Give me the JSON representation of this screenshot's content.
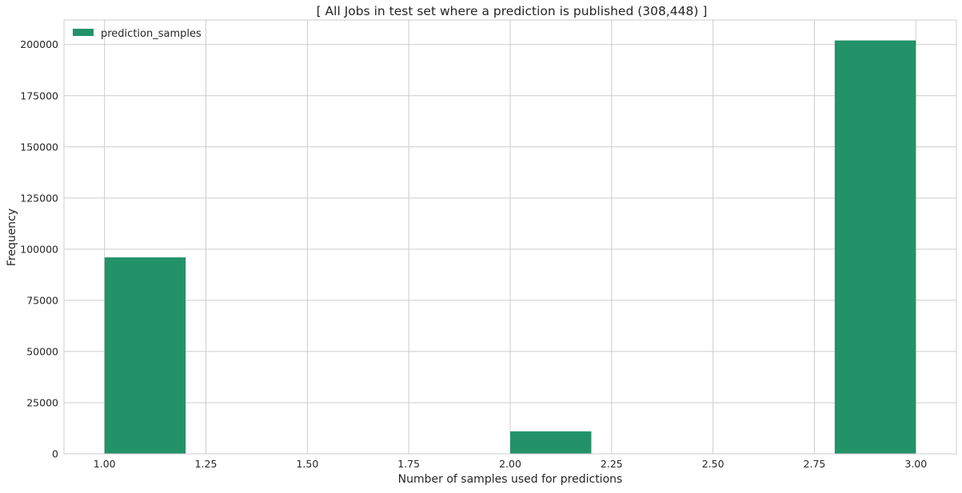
{
  "chart_data": {
    "type": "bar",
    "title": "[ All Jobs in test set where a prediction is published (308,448) ]",
    "xlabel": "Number of samples used for predictions",
    "ylabel": "Frequency",
    "xlim": [
      0.9,
      3.1
    ],
    "ylim": [
      0,
      212000
    ],
    "xticks": [
      1.0,
      1.25,
      1.5,
      1.75,
      2.0,
      2.25,
      2.5,
      2.75,
      3.0
    ],
    "xtick_labels": [
      "1.00",
      "1.25",
      "1.50",
      "1.75",
      "2.00",
      "2.25",
      "2.50",
      "2.75",
      "3.00"
    ],
    "yticks": [
      0,
      25000,
      50000,
      75000,
      100000,
      125000,
      150000,
      175000,
      200000
    ],
    "ytick_labels": [
      "0",
      "25000",
      "50000",
      "75000",
      "100000",
      "125000",
      "150000",
      "175000",
      "200000"
    ],
    "grid": true,
    "legend_position": "top-left",
    "series": [
      {
        "name": "prediction_samples",
        "color": "#239269",
        "bins": [
          {
            "x0": 1.0,
            "x1": 1.2,
            "value": 96000
          },
          {
            "x0": 2.0,
            "x1": 2.2,
            "value": 11000
          },
          {
            "x0": 2.8,
            "x1": 3.0,
            "value": 202000
          }
        ]
      }
    ]
  }
}
